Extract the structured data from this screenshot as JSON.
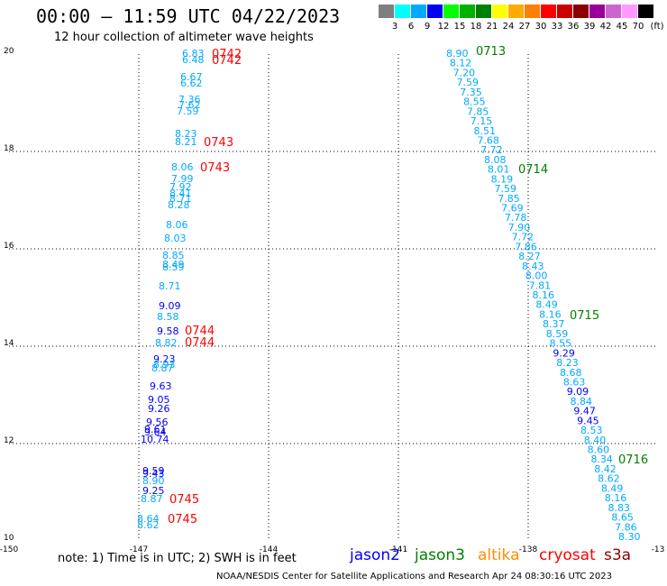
{
  "header": {
    "title": "00:00 – 11:59 UTC 04/22/2023",
    "subtitle": "12 hour collection of altimeter wave heights"
  },
  "color_scale": {
    "labels": [
      "3",
      "6",
      "9",
      "12",
      "15",
      "18",
      "21",
      "24",
      "27",
      "30",
      "33",
      "36",
      "39",
      "42",
      "45",
      "70"
    ],
    "unit": "(ft)",
    "colors": [
      "#7f7f7f",
      "#00ffff",
      "#00aaff",
      "#0000ff",
      "#00ff00",
      "#00b200",
      "#008000",
      "#ffff00",
      "#ffaa00",
      "#ff7f00",
      "#ff0000",
      "#cc0000",
      "#8b0000",
      "#990099",
      "#cc66cc",
      "#ff99ff",
      "#000000"
    ]
  },
  "map": {
    "x_ticks": [
      "-150",
      "-147",
      "-144",
      "-141",
      "-138",
      "-13"
    ],
    "y_ticks": [
      "20",
      "18",
      "16",
      "14",
      "12",
      "10"
    ],
    "grid": true
  },
  "tracks": [
    {
      "name": "west_track",
      "points": [
        {
          "v": "6.83",
          "c": "#00aaff"
        },
        {
          "v": "6.48",
          "c": "#00aaff"
        },
        {
          "v": "6.67",
          "c": "#00aaff"
        },
        {
          "v": "6.62",
          "c": "#00aaff"
        },
        {
          "v": "7.36",
          "c": "#00aaff"
        },
        {
          "v": "7.62",
          "c": "#00aaff"
        },
        {
          "v": "7.59",
          "c": "#00aaff"
        },
        {
          "v": "8.23",
          "c": "#00aaff"
        },
        {
          "v": "8.21",
          "c": "#00aaff"
        },
        {
          "v": "8.06",
          "c": "#00aaff"
        },
        {
          "v": "7.99",
          "c": "#00aaff"
        },
        {
          "v": "7.92",
          "c": "#00aaff"
        },
        {
          "v": "8.41",
          "c": "#00aaff"
        },
        {
          "v": "8.71",
          "c": "#00aaff"
        },
        {
          "v": "8.28",
          "c": "#00aaff"
        },
        {
          "v": "8.06",
          "c": "#00aaff"
        },
        {
          "v": "8.03",
          "c": "#00aaff"
        },
        {
          "v": "8.85",
          "c": "#00aaff"
        },
        {
          "v": "8.49",
          "c": "#00aaff"
        },
        {
          "v": "8.59",
          "c": "#00aaff"
        },
        {
          "v": "8.71",
          "c": "#00aaff"
        },
        {
          "v": "9.09",
          "c": "#0000ff"
        },
        {
          "v": "8.58",
          "c": "#00aaff"
        },
        {
          "v": "9.58",
          "c": "#0000ff"
        },
        {
          "v": "8.82",
          "c": "#00aaff"
        },
        {
          "v": "9.23",
          "c": "#0000ff"
        },
        {
          "v": "8.93",
          "c": "#00aaff"
        },
        {
          "v": "8.87",
          "c": "#00aaff"
        },
        {
          "v": "9.63",
          "c": "#0000ff"
        },
        {
          "v": "9.05",
          "c": "#0000ff"
        },
        {
          "v": "9.26",
          "c": "#0000ff"
        },
        {
          "v": "9.56",
          "c": "#0000ff"
        },
        {
          "v": "9.61",
          "c": "#0000ff"
        },
        {
          "v": "9.64",
          "c": "#0000ff"
        },
        {
          "v": "10.74",
          "c": "#0000ff"
        },
        {
          "v": "9.59",
          "c": "#0000ff"
        },
        {
          "v": "9.43",
          "c": "#0000ff"
        },
        {
          "v": "8.90",
          "c": "#00aaff"
        },
        {
          "v": "9.25",
          "c": "#0000ff"
        },
        {
          "v": "8.87",
          "c": "#00aaff"
        },
        {
          "v": "8.64",
          "c": "#00aaff"
        },
        {
          "v": "8.62",
          "c": "#00aaff"
        }
      ]
    },
    {
      "name": "east_track",
      "points": [
        {
          "v": "8.90",
          "c": "#00aaff"
        },
        {
          "v": "8.12",
          "c": "#00aaff"
        },
        {
          "v": "7.20",
          "c": "#00aaff"
        },
        {
          "v": "7.59",
          "c": "#00aaff"
        },
        {
          "v": "7.35",
          "c": "#00aaff"
        },
        {
          "v": "8.55",
          "c": "#00aaff"
        },
        {
          "v": "7.85",
          "c": "#00aaff"
        },
        {
          "v": "7.15",
          "c": "#00aaff"
        },
        {
          "v": "8.51",
          "c": "#00aaff"
        },
        {
          "v": "7.68",
          "c": "#00aaff"
        },
        {
          "v": "7.72",
          "c": "#00aaff"
        },
        {
          "v": "8.08",
          "c": "#00aaff"
        },
        {
          "v": "8.01",
          "c": "#00aaff"
        },
        {
          "v": "8.19",
          "c": "#00aaff"
        },
        {
          "v": "7.59",
          "c": "#00aaff"
        },
        {
          "v": "7.85",
          "c": "#00aaff"
        },
        {
          "v": "7.69",
          "c": "#00aaff"
        },
        {
          "v": "7.78",
          "c": "#00aaff"
        },
        {
          "v": "7.90",
          "c": "#00aaff"
        },
        {
          "v": "7.72",
          "c": "#00aaff"
        },
        {
          "v": "7.86",
          "c": "#00aaff"
        },
        {
          "v": "8.27",
          "c": "#00aaff"
        },
        {
          "v": "8.43",
          "c": "#00aaff"
        },
        {
          "v": "8.00",
          "c": "#00aaff"
        },
        {
          "v": "7.81",
          "c": "#00aaff"
        },
        {
          "v": "8.16",
          "c": "#00aaff"
        },
        {
          "v": "8.49",
          "c": "#00aaff"
        },
        {
          "v": "8.16",
          "c": "#00aaff"
        },
        {
          "v": "8.37",
          "c": "#00aaff"
        },
        {
          "v": "8.59",
          "c": "#00aaff"
        },
        {
          "v": "8.55",
          "c": "#00aaff"
        },
        {
          "v": "9.29",
          "c": "#0000ff"
        },
        {
          "v": "8.23",
          "c": "#00aaff"
        },
        {
          "v": "8.68",
          "c": "#00aaff"
        },
        {
          "v": "8.63",
          "c": "#00aaff"
        },
        {
          "v": "9.09",
          "c": "#0000ff"
        },
        {
          "v": "8.84",
          "c": "#00aaff"
        },
        {
          "v": "9.47",
          "c": "#0000ff"
        },
        {
          "v": "9.45",
          "c": "#0000ff"
        },
        {
          "v": "8.53",
          "c": "#00aaff"
        },
        {
          "v": "8.40",
          "c": "#00aaff"
        },
        {
          "v": "8.60",
          "c": "#00aaff"
        },
        {
          "v": "8.34",
          "c": "#00aaff"
        },
        {
          "v": "8.42",
          "c": "#00aaff"
        },
        {
          "v": "8.62",
          "c": "#00aaff"
        },
        {
          "v": "8.49",
          "c": "#00aaff"
        },
        {
          "v": "8.16",
          "c": "#00aaff"
        },
        {
          "v": "8.83",
          "c": "#00aaff"
        },
        {
          "v": "8.65",
          "c": "#00aaff"
        },
        {
          "v": "7.86",
          "c": "#00aaff"
        },
        {
          "v": "8.30",
          "c": "#00aaff"
        }
      ]
    }
  ],
  "time_labels": [
    {
      "t": "0742",
      "c": "#ff0000"
    },
    {
      "t": "0742",
      "c": "#ff0000"
    },
    {
      "t": "0743",
      "c": "#ff0000"
    },
    {
      "t": "0743",
      "c": "#ff0000"
    },
    {
      "t": "0744",
      "c": "#ff0000"
    },
    {
      "t": "0744",
      "c": "#ff0000"
    },
    {
      "t": "0745",
      "c": "#ff0000"
    },
    {
      "t": "0745",
      "c": "#ff0000"
    },
    {
      "t": "0713",
      "c": "#008000"
    },
    {
      "t": "0714",
      "c": "#008000"
    },
    {
      "t": "0715",
      "c": "#008000"
    },
    {
      "t": "0716",
      "c": "#008000"
    }
  ],
  "footer": {
    "note": "note:  1) Time is in UTC;  2) SWH is in feet",
    "satellites": [
      {
        "name": "jason2",
        "color": "#0000ff"
      },
      {
        "name": "jason3",
        "color": "#008000"
      },
      {
        "name": "altika",
        "color": "#ff8c00"
      },
      {
        "name": "cryosat",
        "color": "#ff0000"
      },
      {
        "name": "s3a",
        "color": "#8b0000"
      }
    ],
    "credit": "NOAA/NESDIS Center for Satellite Applications and Research    Apr 24 08:30:16 UTC 2023"
  }
}
